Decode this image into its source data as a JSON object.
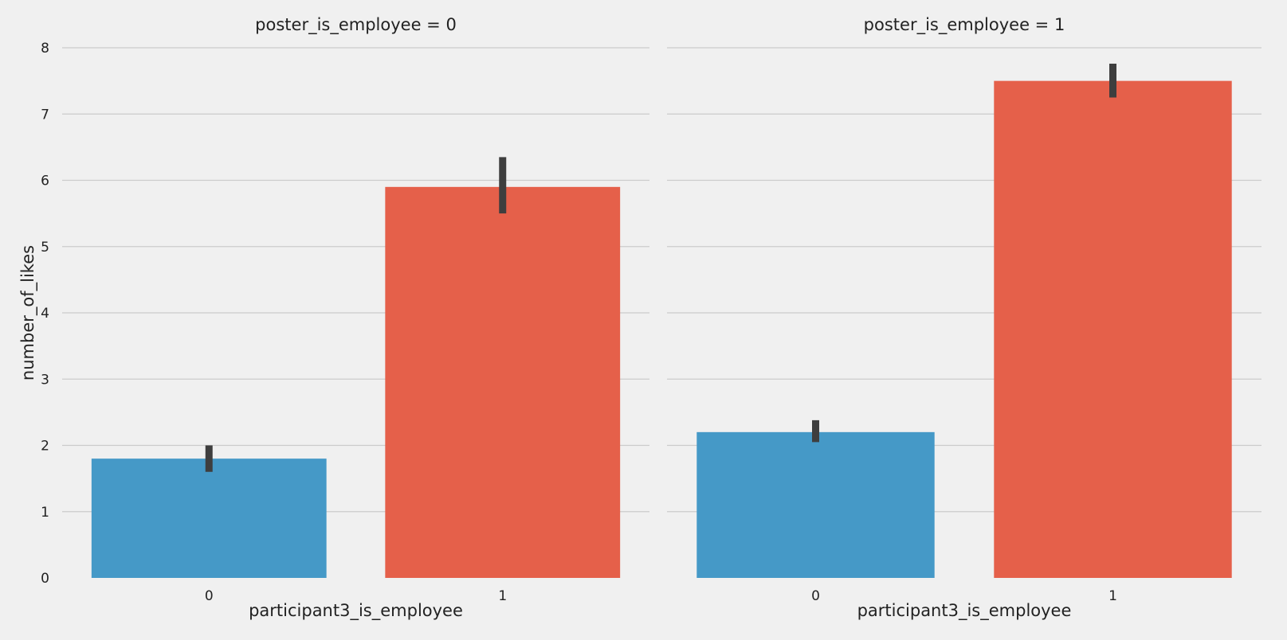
{
  "chart_data": {
    "type": "bar",
    "facet_variable": "poster_is_employee",
    "ylabel": "number_of_likes",
    "xlabel": "participant3_is_employee",
    "ylim": [
      0,
      8
    ],
    "yticks": [
      "0",
      "1",
      "2",
      "3",
      "4",
      "5",
      "6",
      "7",
      "8"
    ],
    "grid": true,
    "colors": {
      "category_0": "#4599c7",
      "category_1": "#e5604a",
      "error_bar": "#3e3e3e",
      "grid": "#cbcbcb",
      "background": "#f0f0f0"
    },
    "panels": [
      {
        "title": "poster_is_employee = 0",
        "categories": [
          "0",
          "1"
        ],
        "values": [
          1.8,
          5.9
        ],
        "error_low": [
          1.6,
          5.5
        ],
        "error_high": [
          2.0,
          6.35
        ]
      },
      {
        "title": "poster_is_employee = 1",
        "categories": [
          "0",
          "1"
        ],
        "values": [
          2.2,
          7.5
        ],
        "error_low": [
          2.05,
          7.25
        ],
        "error_high": [
          2.38,
          7.76
        ]
      }
    ]
  }
}
